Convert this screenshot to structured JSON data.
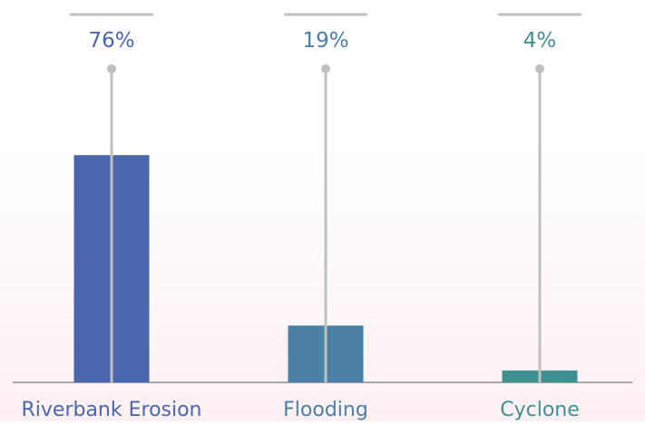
{
  "chart_data": {
    "type": "bar",
    "categories": [
      "Riverbank Erosion",
      "Flooding",
      "Cyclone"
    ],
    "values": [
      76,
      19,
      4
    ],
    "value_labels": [
      "76%",
      "19%",
      "4%"
    ],
    "unit": "%",
    "ylim": [
      0,
      100
    ],
    "grid": false,
    "legend": "none",
    "colors": [
      "#4a67ad",
      "#4a7fa6",
      "#3f9191"
    ],
    "stem_color": "#c0c0c0",
    "baseline_color": "#a8a8a8"
  }
}
